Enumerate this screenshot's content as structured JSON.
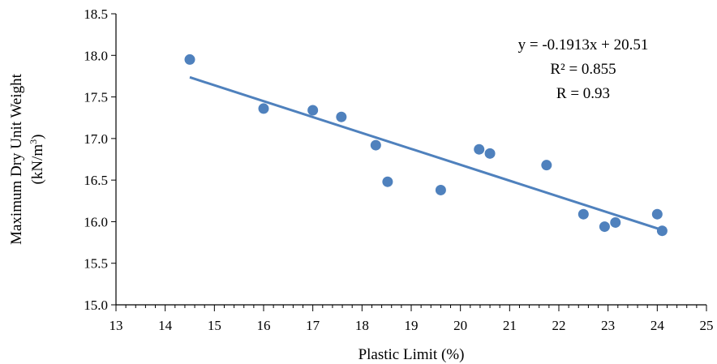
{
  "chart_data": {
    "type": "scatter",
    "title": "",
    "xlabel": "Plastic Limit (%)",
    "ylabel_line1": "Maximum Dry Unit Weight",
    "ylabel_line2_prefix": "(kN/m",
    "ylabel_line2_sup": "3",
    "ylabel_line2_suffix": ")",
    "xlim": [
      13,
      25
    ],
    "ylim": [
      15.0,
      18.5
    ],
    "x_ticks": [
      "13",
      "14",
      "15",
      "16",
      "17",
      "18",
      "19",
      "20",
      "21",
      "22",
      "23",
      "24",
      "25"
    ],
    "y_ticks": [
      "15.0",
      "15.5",
      "16.0",
      "16.5",
      "17.0",
      "17.5",
      "18.0",
      "18.5"
    ],
    "x_minor_step": 0.2,
    "grid": false,
    "marker_color": "#4F81BD",
    "trendline_color": "#4F81BD",
    "points": [
      {
        "x": 14.5,
        "y": 17.95
      },
      {
        "x": 16.0,
        "y": 17.36
      },
      {
        "x": 17.0,
        "y": 17.34
      },
      {
        "x": 17.58,
        "y": 17.26
      },
      {
        "x": 18.28,
        "y": 16.92
      },
      {
        "x": 18.52,
        "y": 16.48
      },
      {
        "x": 19.6,
        "y": 16.38
      },
      {
        "x": 20.38,
        "y": 16.87
      },
      {
        "x": 20.6,
        "y": 16.82
      },
      {
        "x": 21.75,
        "y": 16.68
      },
      {
        "x": 22.5,
        "y": 16.09
      },
      {
        "x": 22.93,
        "y": 15.94
      },
      {
        "x": 23.15,
        "y": 15.99
      },
      {
        "x": 24.0,
        "y": 16.09
      },
      {
        "x": 24.1,
        "y": 15.89
      }
    ],
    "trendline": {
      "slope": -0.1913,
      "intercept": 20.51,
      "x_range": [
        14.5,
        24.1
      ]
    },
    "annotations": [
      "y = -0.1913x + 20.51",
      "R² = 0.855",
      "R = 0.93"
    ]
  }
}
